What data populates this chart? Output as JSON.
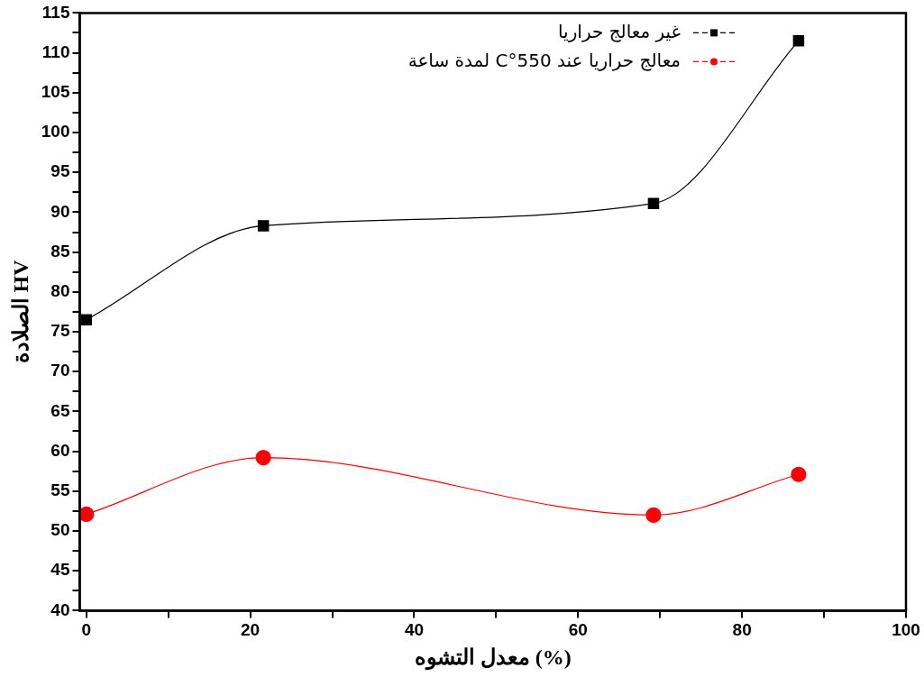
{
  "chart_data": {
    "type": "line",
    "xlabel": "معدل التشوه (%)",
    "ylabel": "الصلادة HV",
    "xlim": [
      -0.8,
      100
    ],
    "xticks": [
      0,
      {
        "value": 10,
        "label": null
      },
      20,
      {
        "value": 30,
        "label": null
      },
      40,
      {
        "value": 50,
        "label": null
      },
      60,
      {
        "value": 70,
        "label": null
      },
      80,
      {
        "value": 90,
        "label": null
      },
      100
    ],
    "ylim": [
      40,
      115
    ],
    "yticks": [
      40,
      {
        "value": 42.5,
        "label": null
      },
      45,
      {
        "value": 47.5,
        "label": null
      },
      50,
      {
        "value": 52.5,
        "label": null
      },
      55,
      {
        "value": 57.5,
        "label": null
      },
      60,
      {
        "value": 62.5,
        "label": null
      },
      65,
      {
        "value": 67.5,
        "label": null
      },
      70,
      {
        "value": 72.5,
        "label": null
      },
      75,
      {
        "value": 77.5,
        "label": null
      },
      80,
      {
        "value": 82.5,
        "label": null
      },
      85,
      {
        "value": 87.5,
        "label": null
      },
      90,
      {
        "value": 92.5,
        "label": null
      },
      95,
      {
        "value": 97.5,
        "label": null
      },
      100,
      {
        "value": 102.5,
        "label": null
      },
      105,
      {
        "value": 107.5,
        "label": null
      },
      110,
      {
        "value": 112.5,
        "label": null
      },
      115
    ],
    "x": [
      0,
      21.6,
      69.2,
      86.9
    ],
    "series": [
      {
        "name": "غير معالج حراريا",
        "color": "#000000",
        "marker": "square",
        "values": [
          76.5,
          88.3,
          91.1,
          111.5
        ]
      },
      {
        "name": "معالج حراريا عند 550°C لمدة ساعة",
        "color": "#ff0000",
        "marker": "circle",
        "values": [
          52.1,
          59.2,
          52.0,
          57.1
        ]
      }
    ],
    "grid": false,
    "legend": "top right",
    "line_style": "solid"
  }
}
